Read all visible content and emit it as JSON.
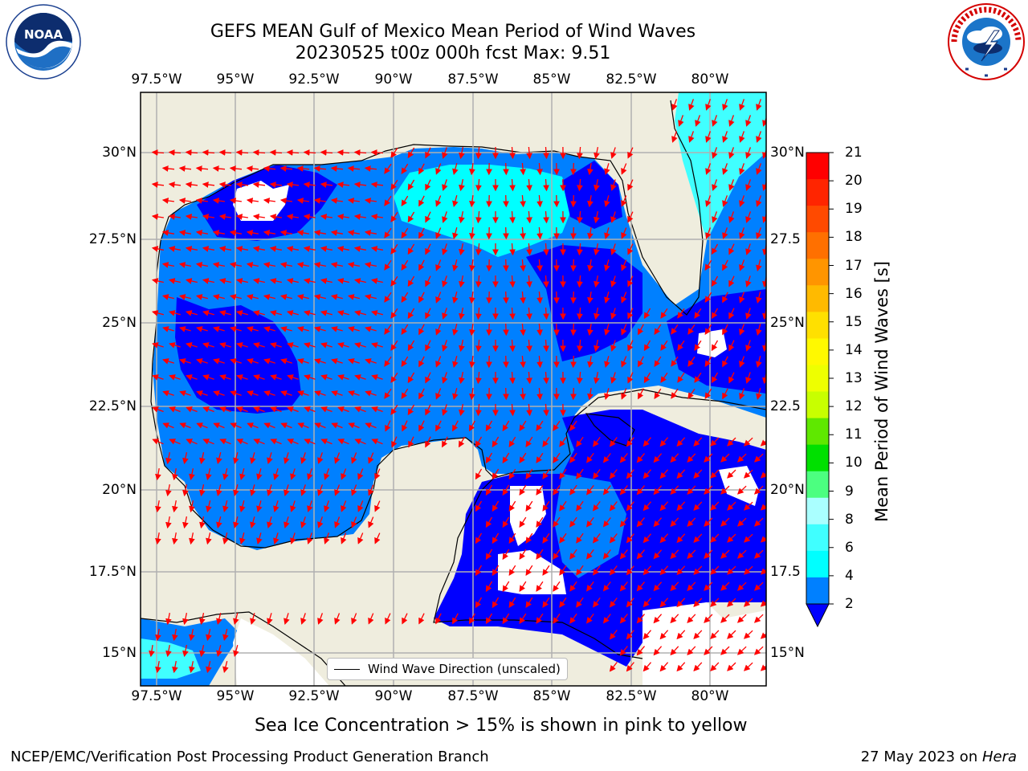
{
  "header": {
    "title_line1": "GEFS MEAN Gulf of Mexico Mean Period of Wind Waves",
    "title_line2": "20230525 t00z 000h fcst   Max: 9.51"
  },
  "logos": {
    "noaa": "NOAA",
    "noaa_ring": "NATIONAL OCEANIC AND ATMOSPHERIC ADMINISTRATION · U.S. DEPARTMENT OF COMMERCE",
    "nws_ring": "NATIONAL WEATHER SERVICE"
  },
  "map": {
    "lon_labels": [
      "97.5°W",
      "95°W",
      "92.5°W",
      "90°W",
      "87.5°W",
      "85°W",
      "82.5°W",
      "80°W"
    ],
    "lat_labels_left": [
      "30°N",
      "27.5°N",
      "25°N",
      "22.5°N",
      "20°N",
      "17.5°N",
      "15°N"
    ],
    "lat_labels_right": [
      "30°N",
      "27.5",
      "25°N",
      "22.5",
      "20°N",
      "17.5",
      "15°N"
    ],
    "legend_label": "Wind Wave Direction (unscaled)",
    "colors": {
      "land": "#efedde",
      "ocean_2_4": "#0080ff",
      "ocean_lt2": "#0000ff",
      "ocean_4_6": "#00ffff",
      "ocean_6_8": "#40ffff",
      "no_data": "#ffffff",
      "arrow": "#ff0000",
      "grid": "#b0b0b0"
    }
  },
  "colorbar": {
    "label": "Mean Period of Wind Waves [s]",
    "ticks": [
      "21",
      "20",
      "19",
      "18",
      "17",
      "16",
      "15",
      "14",
      "13",
      "12",
      "11",
      "10",
      "9",
      "8",
      "6",
      "4",
      "2"
    ],
    "colors": [
      "#ff0000",
      "#ff2500",
      "#ff4a00",
      "#ff7000",
      "#ff9500",
      "#ffba00",
      "#ffe000",
      "#fff900",
      "#eeff00",
      "#c8ff00",
      "#5fe800",
      "#00e000",
      "#4cff80",
      "#aaffff",
      "#40ffff",
      "#00ffff",
      "#0080ff"
    ],
    "extend_color": "#0000ff"
  },
  "footer": {
    "ice_note": "Sea Ice Concentration > 15% is shown in pink to yellow",
    "left": "NCEP/EMC/Verification Post Processing Product Generation Branch",
    "right_date": "27 May 2023 on ",
    "right_host": "Hera"
  }
}
